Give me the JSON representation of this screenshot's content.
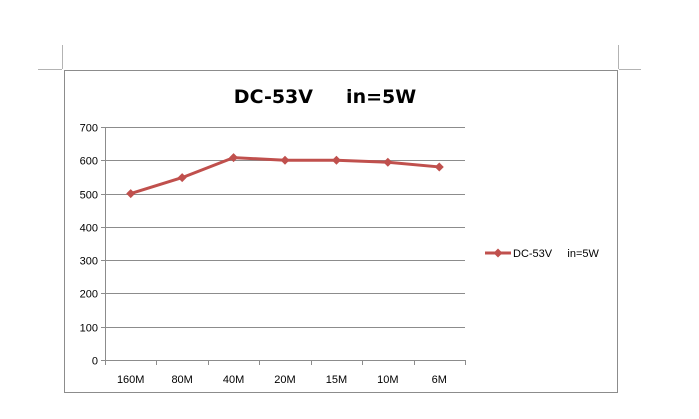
{
  "chart_data": {
    "type": "line",
    "title": "DC-53V     in=5W",
    "xlabel": "",
    "ylabel": "",
    "categories": [
      "160M",
      "80M",
      "40M",
      "20M",
      "15M",
      "10M",
      "6M"
    ],
    "ylim": [
      0,
      700
    ],
    "yticks": [
      0,
      100,
      200,
      300,
      400,
      500,
      600,
      700
    ],
    "grid": true,
    "legend_position": "right",
    "series": [
      {
        "name": "DC-53V     in=5W",
        "values": [
          500,
          548,
          608,
          600,
          600,
          594,
          580
        ],
        "color": "#c0504d",
        "marker": "diamond"
      }
    ]
  }
}
